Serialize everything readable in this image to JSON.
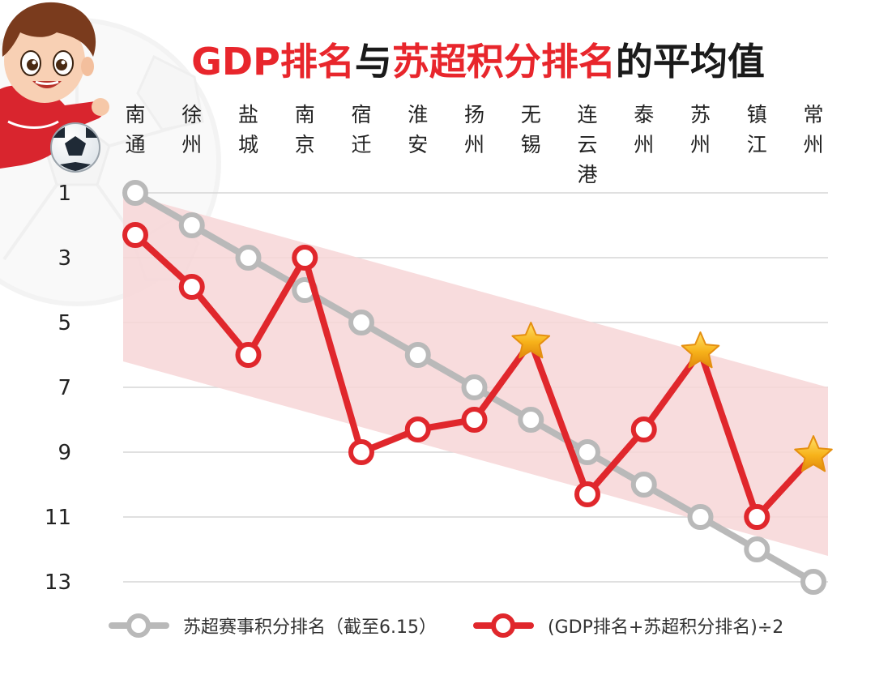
{
  "title": {
    "segments": [
      {
        "text": "GDP排名",
        "color": "#e8262c"
      },
      {
        "text": "与",
        "color": "#1a1a1a"
      },
      {
        "text": "苏超积分排名",
        "color": "#e8262c"
      },
      {
        "text": "的平均值",
        "color": "#1a1a1a"
      }
    ]
  },
  "colors": {
    "gray_series": "#b9b9b9",
    "red_series": "#e0272c",
    "band": "#f7d6d7",
    "gridline": "#d6d6d6",
    "star": "#f6b81f"
  },
  "decorations": [
    "cartoon-soccer-player",
    "soccer-ball-icon",
    "faded-soccer-ball-watermark",
    "star-icon"
  ],
  "chart_data": {
    "type": "line",
    "categories": [
      "南通",
      "徐州",
      "盐城",
      "南京",
      "宿迁",
      "淮安",
      "扬州",
      "无锡",
      "连云港",
      "泰州",
      "苏州",
      "镇江",
      "常州"
    ],
    "category_lines": [
      [
        "南",
        "通"
      ],
      [
        "徐",
        "州"
      ],
      [
        "盐",
        "城"
      ],
      [
        "南",
        "京"
      ],
      [
        "宿",
        "迁"
      ],
      [
        "淮",
        "安"
      ],
      [
        "扬",
        "州"
      ],
      [
        "无",
        "锡"
      ],
      [
        "连",
        "云",
        "港"
      ],
      [
        "泰",
        "州"
      ],
      [
        "苏",
        "州"
      ],
      [
        "镇",
        "江"
      ],
      [
        "常",
        "州"
      ]
    ],
    "yticks": [
      1,
      3,
      5,
      7,
      9,
      11,
      13
    ],
    "ylim": [
      1,
      13
    ],
    "y_inverted": true,
    "grid": true,
    "legend_position": "bottom",
    "series": [
      {
        "name": "苏超赛事积分排名（截至6.15）",
        "color": "#b9b9b9",
        "values": [
          1,
          2,
          3,
          4,
          5,
          6,
          7,
          8,
          9,
          10,
          11,
          12,
          13
        ]
      },
      {
        "name": "(GDP排名+苏超积分排名)÷2",
        "color": "#e0272c",
        "values": [
          2.3,
          3.9,
          6.0,
          3.0,
          9.0,
          8.3,
          8.0,
          5.6,
          10.3,
          8.3,
          5.9,
          11.0,
          9.1
        ],
        "starred_points": [
          "无锡",
          "苏州",
          "常州"
        ]
      }
    ],
    "band": {
      "color": "#f7d6d7",
      "upper_start": 1.0,
      "upper_end": 7.0,
      "lower_start": 6.2,
      "lower_end": 12.2
    }
  }
}
